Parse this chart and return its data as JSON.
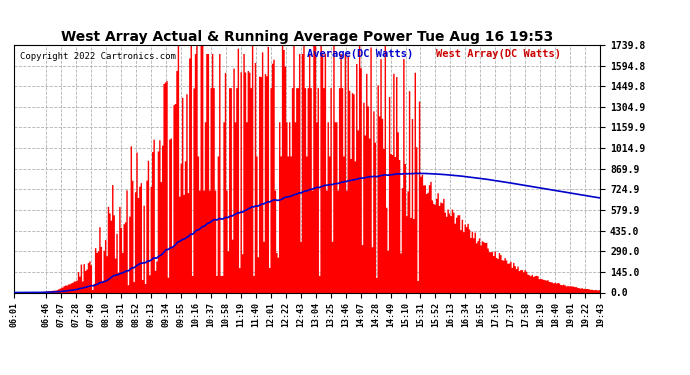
{
  "title": "West Array Actual & Running Average Power Tue Aug 16 19:53",
  "copyright": "Copyright 2022 Cartronics.com",
  "legend_avg": "Average(DC Watts)",
  "legend_west": "West Array(DC Watts)",
  "yticks": [
    0.0,
    145.0,
    290.0,
    435.0,
    579.9,
    724.9,
    869.9,
    1014.9,
    1159.9,
    1304.9,
    1449.8,
    1594.8,
    1739.8
  ],
  "ymax": 1739.8,
  "bg_color": "#ffffff",
  "plot_bg_color": "#ffffff",
  "grid_color": "#aaaaaa",
  "bar_color": "#ff0000",
  "avg_line_color": "#0000cc",
  "title_color": "#000000",
  "copyright_color": "#000000",
  "legend_avg_color": "#0000cc",
  "legend_west_color": "#cc0000",
  "xtick_labels": [
    "06:01",
    "06:46",
    "07:07",
    "07:28",
    "07:49",
    "08:10",
    "08:31",
    "08:52",
    "09:13",
    "09:34",
    "09:55",
    "10:16",
    "10:37",
    "10:58",
    "11:19",
    "11:40",
    "12:01",
    "12:22",
    "12:43",
    "13:04",
    "13:25",
    "13:46",
    "14:07",
    "14:28",
    "14:49",
    "15:10",
    "15:31",
    "15:52",
    "16:13",
    "16:34",
    "16:55",
    "17:16",
    "17:37",
    "17:58",
    "18:19",
    "18:40",
    "19:01",
    "19:22",
    "19:43"
  ]
}
